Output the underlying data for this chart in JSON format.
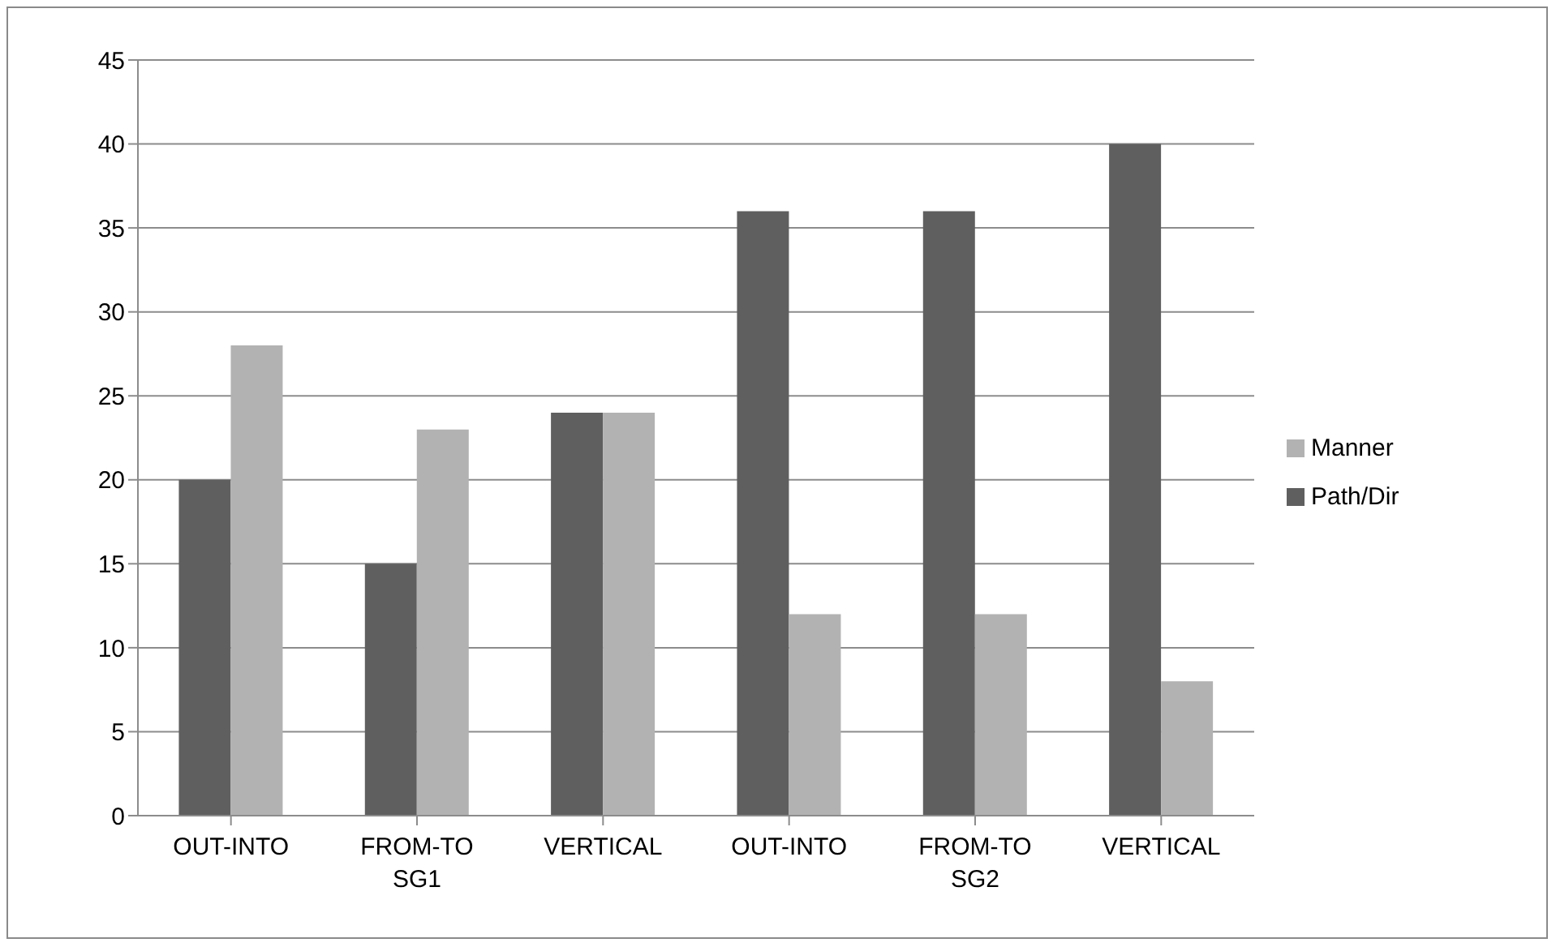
{
  "chart_data": {
    "type": "bar",
    "categories": [
      "OUT-INTO",
      "FROM-TO",
      "VERTICAL",
      "OUT-INTO",
      "FROM-TO",
      "VERTICAL"
    ],
    "series": [
      {
        "name": "Path/Dir",
        "color": "#5f5f5f",
        "values": [
          20,
          15,
          24,
          36,
          36,
          40
        ]
      },
      {
        "name": "Manner",
        "color": "#b2b2b2",
        "values": [
          28,
          23,
          24,
          12,
          12,
          8
        ]
      }
    ],
    "annotations": [
      "SG1",
      "SG2"
    ],
    "ylim": [
      0,
      45
    ],
    "yticks": [
      0,
      5,
      10,
      15,
      20,
      25,
      30,
      35,
      40,
      45
    ],
    "grid": "y",
    "legend": "right"
  }
}
